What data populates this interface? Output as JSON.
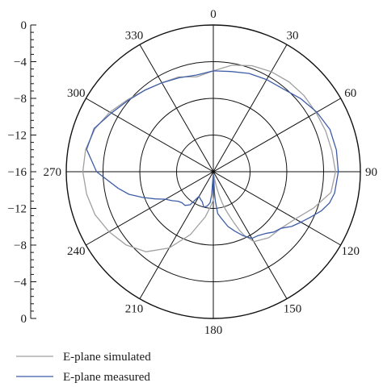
{
  "chart_data": {
    "type": "polar-line",
    "title": "",
    "radial_axis": {
      "min": -16,
      "max": 0,
      "ring_values": [
        -16,
        -12,
        -8,
        -4,
        0
      ],
      "tick_labels": [
        "0",
        "−4",
        "−8",
        "−12",
        "−16",
        "−12",
        "−8",
        "−4",
        "0"
      ]
    },
    "angular_axis": {
      "direction": "clockwise",
      "zero_at": "top",
      "spoke_step_deg": 30,
      "tick_labels": [
        "0",
        "30",
        "60",
        "90",
        "120",
        "150",
        "180",
        "210",
        "240",
        "270",
        "300",
        "330"
      ]
    },
    "grid": true,
    "legend_placement": "bottom-left",
    "series": [
      {
        "name": "E-plane simulated",
        "color": "#a0a0a0",
        "angles_deg": [
          0,
          10,
          20,
          30,
          40,
          50,
          60,
          70,
          80,
          90,
          100,
          110,
          120,
          130,
          140,
          150,
          152,
          154,
          156,
          158,
          160,
          162,
          164,
          166,
          168,
          170,
          172,
          174,
          176,
          178,
          180,
          184,
          190,
          200,
          210,
          220,
          230,
          240,
          250,
          260,
          270,
          280,
          290,
          300,
          310,
          320,
          330,
          340,
          350,
          360
        ],
        "values": [
          -5.0,
          -4.2,
          -3.7,
          -3.4,
          -3.2,
          -3.1,
          -3.1,
          -3.0,
          -2.9,
          -2.7,
          -3.0,
          -4.4,
          -5.7,
          -6.4,
          -6.6,
          -7.2,
          -7.8,
          -8.2,
          -9.0,
          -10.0,
          -10.9,
          -11.6,
          -12.4,
          -13.3,
          -14.2,
          -15.1,
          -15.7,
          -15.2,
          -14.2,
          -13.4,
          -12.9,
          -12.3,
          -11.0,
          -8.7,
          -6.4,
          -4.6,
          -3.6,
          -2.9,
          -2.3,
          -2.0,
          -1.8,
          -1.9,
          -2.3,
          -3.0,
          -3.8,
          -4.4,
          -4.8,
          -5.0,
          -5.5,
          -5.0
        ]
      },
      {
        "name": "E-plane measured",
        "color": "#3f5ea8",
        "angles_deg": [
          0,
          10,
          20,
          30,
          40,
          50,
          60,
          70,
          80,
          90,
          100,
          105,
          110,
          115,
          120,
          125,
          130,
          135,
          140,
          145,
          150,
          155,
          160,
          165,
          170,
          174,
          176,
          178,
          180,
          182,
          184,
          186,
          190,
          195,
          200,
          205,
          210,
          215,
          220,
          225,
          230,
          235,
          240,
          245,
          250,
          255,
          260,
          270,
          280,
          290,
          300,
          310,
          320,
          330,
          340,
          350,
          360
        ],
        "values": [
          -5.0,
          -4.9,
          -4.6,
          -4.4,
          -4.2,
          -3.6,
          -3.0,
          -2.5,
          -2.4,
          -2.4,
          -2.6,
          -2.9,
          -3.5,
          -4.3,
          -5.0,
          -5.6,
          -6.4,
          -6.7,
          -7.2,
          -7.5,
          -7.6,
          -8.3,
          -9.1,
          -9.8,
          -10.8,
          -11.4,
          -12.8,
          -14.3,
          -15.6,
          -15.7,
          -13.5,
          -12.6,
          -12.2,
          -12.0,
          -12.5,
          -12.7,
          -12.9,
          -11.6,
          -11.2,
          -11.2,
          -11.0,
          -10.5,
          -10.0,
          -9.0,
          -7.8,
          -6.5,
          -5.5,
          -3.3,
          -2.0,
          -2.2,
          -3.2,
          -3.9,
          -4.4,
          -4.8,
          -5.1,
          -5.3,
          -5.0
        ]
      }
    ]
  },
  "legend": {
    "items": [
      {
        "label": "E-plane simulated",
        "color": "#a0a0a0"
      },
      {
        "label": "E-plane measured",
        "color": "#3f5ea8"
      }
    ]
  }
}
